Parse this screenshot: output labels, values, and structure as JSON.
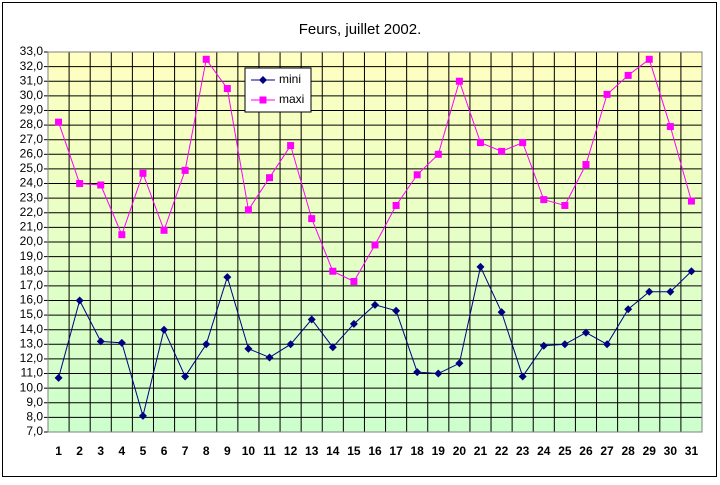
{
  "chart_data": {
    "type": "line",
    "title": "Feurs, juillet 2002.",
    "categories": [
      "1",
      "2",
      "3",
      "4",
      "5",
      "6",
      "7",
      "8",
      "9",
      "10",
      "11",
      "12",
      "13",
      "14",
      "15",
      "16",
      "17",
      "18",
      "19",
      "20",
      "21",
      "22",
      "23",
      "24",
      "25",
      "26",
      "27",
      "28",
      "29",
      "30",
      "31"
    ],
    "series": [
      {
        "name": "mini",
        "color": "#000080",
        "marker": "diamond",
        "values": [
          10.7,
          16.0,
          13.2,
          13.1,
          8.1,
          14.0,
          10.8,
          13.0,
          17.6,
          12.7,
          12.1,
          13.0,
          14.7,
          12.8,
          14.4,
          15.7,
          15.3,
          11.1,
          11.0,
          11.7,
          18.3,
          15.2,
          10.8,
          12.9,
          13.0,
          13.8,
          13.0,
          15.4,
          16.6,
          16.6,
          18.0
        ]
      },
      {
        "name": "maxi",
        "color": "#ff00ff",
        "marker": "square",
        "values": [
          28.2,
          24.0,
          23.9,
          20.5,
          24.7,
          20.8,
          24.9,
          32.5,
          30.5,
          22.2,
          24.4,
          26.6,
          21.6,
          18.0,
          17.3,
          19.8,
          22.5,
          24.6,
          26.0,
          31.0,
          26.8,
          26.2,
          26.8,
          22.9,
          22.5,
          25.3,
          30.1,
          31.4,
          32.5,
          27.9,
          22.8
        ]
      }
    ],
    "ylim": [
      7,
      33
    ],
    "yticks": [
      {
        "value": 7,
        "label": "7,0"
      },
      {
        "value": 8,
        "label": "8,0"
      },
      {
        "value": 9,
        "label": "9,0"
      },
      {
        "value": 10,
        "label": "10,0"
      },
      {
        "value": 11,
        "label": "11,0"
      },
      {
        "value": 12,
        "label": "12,0"
      },
      {
        "value": 13,
        "label": "13,0"
      },
      {
        "value": 14,
        "label": "14,0"
      },
      {
        "value": 15,
        "label": "15,0"
      },
      {
        "value": 16,
        "label": "16,0"
      },
      {
        "value": 17,
        "label": "17,0"
      },
      {
        "value": 18,
        "label": "18,0"
      },
      {
        "value": 19,
        "label": "19,0"
      },
      {
        "value": 20,
        "label": "20,0"
      },
      {
        "value": 21,
        "label": "21,0"
      },
      {
        "value": 22,
        "label": "22,0"
      },
      {
        "value": 23,
        "label": "23,0"
      },
      {
        "value": 24,
        "label": "24,0"
      },
      {
        "value": 25,
        "label": "25,0"
      },
      {
        "value": 26,
        "label": "26,0"
      },
      {
        "value": 27,
        "label": "27,0"
      },
      {
        "value": 28,
        "label": "28,0"
      },
      {
        "value": 29,
        "label": "29,0"
      },
      {
        "value": 30,
        "label": "30,0"
      },
      {
        "value": 31,
        "label": "31,0"
      },
      {
        "value": 32,
        "label": "32,0"
      },
      {
        "value": 33,
        "label": "33,0"
      }
    ],
    "grid": true,
    "legend": "top-left"
  }
}
